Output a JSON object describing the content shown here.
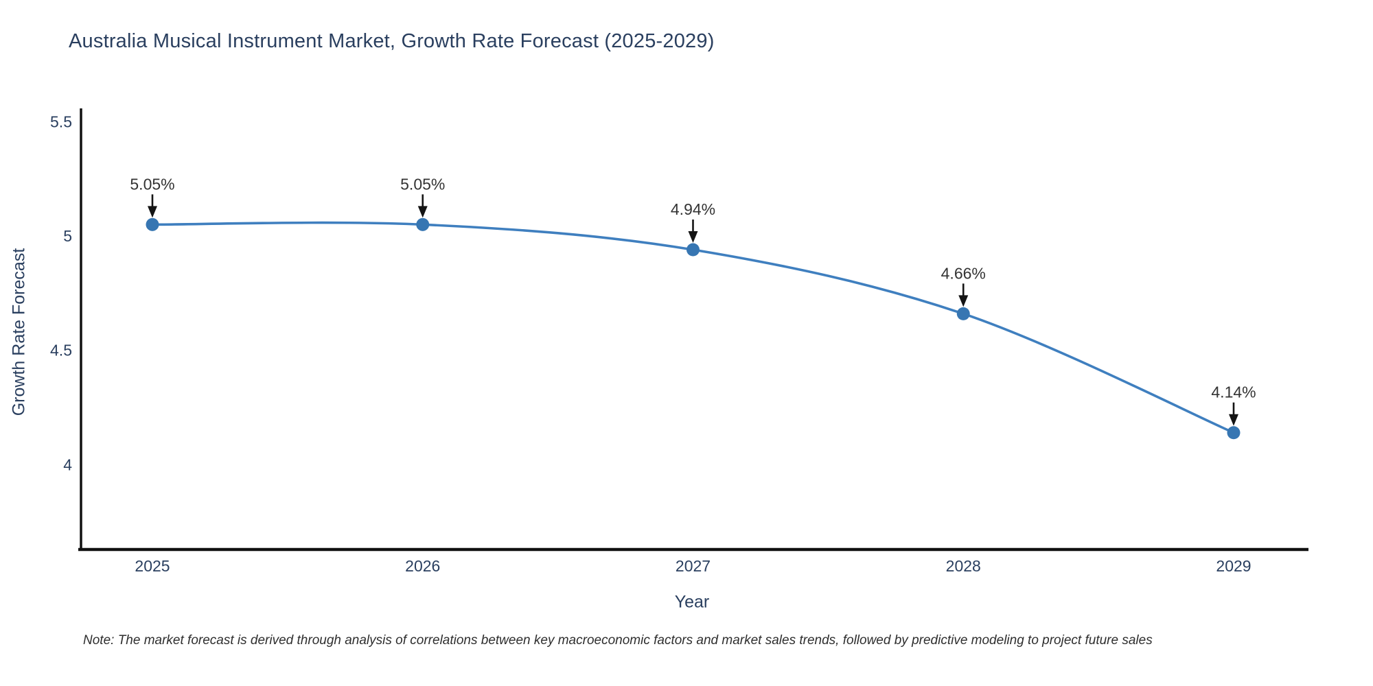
{
  "chart_data": {
    "type": "line",
    "title": "Australia Musical Instrument Market, Growth Rate Forecast (2025-2029)",
    "xlabel": "Year",
    "ylabel": "Growth Rate Forecast",
    "categories": [
      "2025",
      "2026",
      "2027",
      "2028",
      "2029"
    ],
    "series": [
      {
        "name": "Growth Rate Forecast",
        "values": [
          5.05,
          5.05,
          4.94,
          4.66,
          4.14
        ]
      }
    ],
    "point_labels": [
      "5.05%",
      "5.05%",
      "4.94%",
      "4.66%",
      "4.14%"
    ],
    "yticks": [
      5.5,
      5,
      4.5,
      4
    ],
    "ylim": [
      3.63,
      5.56
    ],
    "grid": false,
    "legend_position": "none",
    "line_shape": "spline",
    "colors": {
      "line": "#3f7fbf",
      "marker": "#3776b2",
      "axis": "#111111",
      "tick_text": "#2a3f5f",
      "annotation_text": "#333333",
      "arrow": "#141414"
    },
    "note": "Note: The market forecast is derived through analysis of correlations between key macroeconomic factors and market sales trends, followed by predictive modeling to project future sales"
  }
}
